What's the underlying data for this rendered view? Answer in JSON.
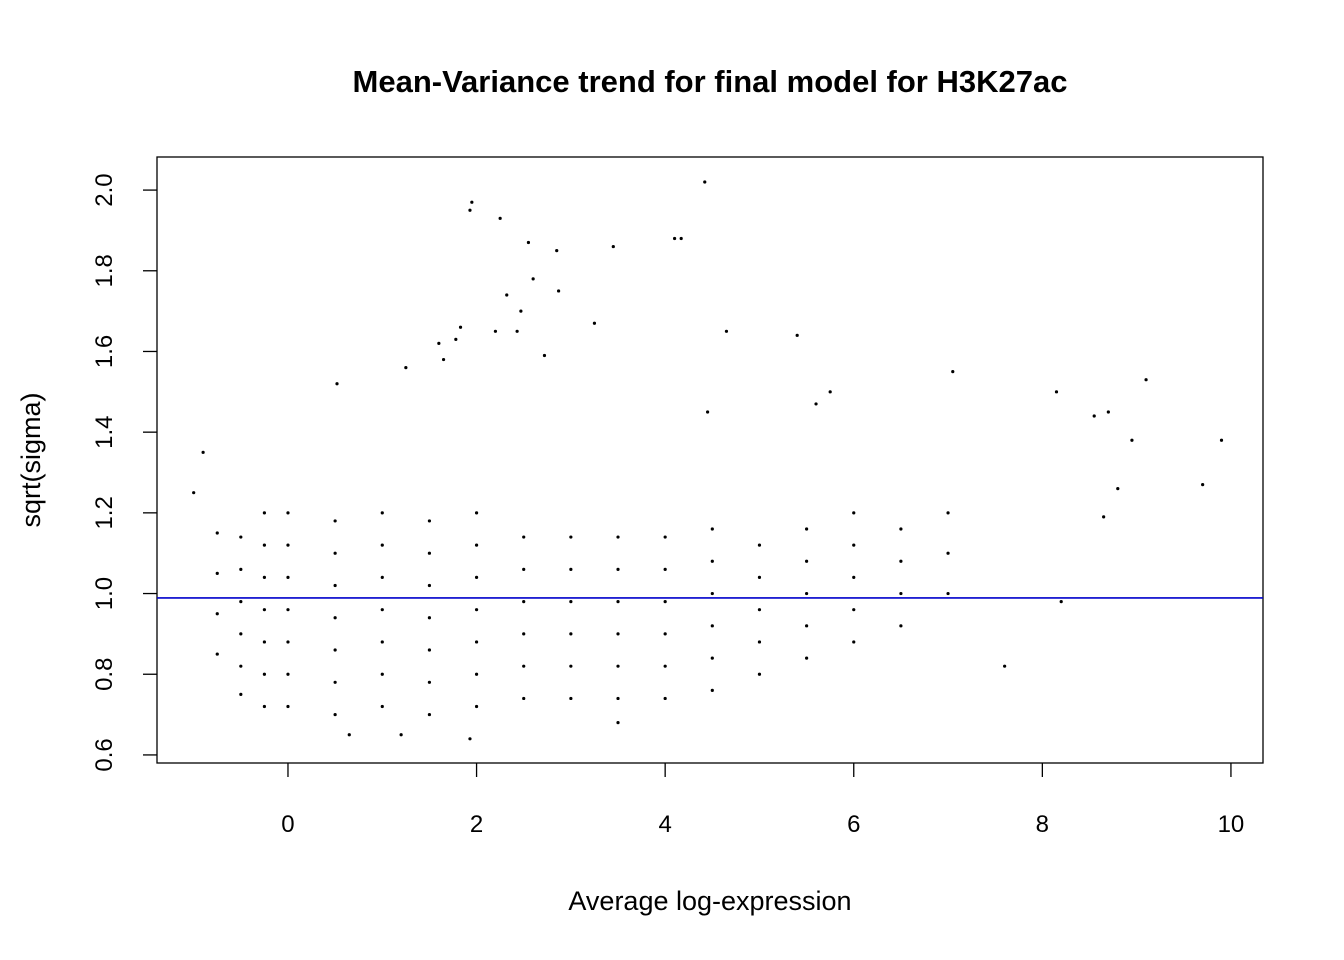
{
  "chart_data": {
    "type": "scatter",
    "title": "Mean-Variance trend for final model for H3K27ac",
    "xlabel": "Average log-expression",
    "ylabel": "sqrt(sigma)",
    "color": "#000000",
    "x": [
      -0.75,
      -0.75,
      -0.75,
      -0.75,
      -0.5,
      -0.5,
      -0.5,
      -0.5,
      -0.5,
      -0.5,
      -0.25,
      -0.25,
      -0.25,
      -0.25,
      -0.25,
      -0.25,
      -0.25,
      0,
      0,
      0,
      0,
      0,
      0,
      0,
      0.5,
      0.5,
      0.5,
      0.5,
      0.5,
      0.5,
      0.5,
      1,
      1,
      1,
      1,
      1,
      1,
      1,
      1.5,
      1.5,
      1.5,
      1.5,
      1.5,
      1.5,
      1.5,
      2,
      2,
      2,
      2,
      2,
      2,
      2,
      2.5,
      2.5,
      2.5,
      2.5,
      2.5,
      2.5,
      3,
      3,
      3,
      3,
      3,
      3,
      3.5,
      3.5,
      3.5,
      3.5,
      3.5,
      3.5,
      4,
      4,
      4,
      4,
      4,
      4,
      4.5,
      4.5,
      4.5,
      4.5,
      4.5,
      4.5,
      5,
      5,
      5,
      5,
      5,
      5.5,
      5.5,
      5.5,
      5.5,
      5.5,
      6,
      6,
      6,
      6,
      6,
      6.5,
      6.5,
      6.5,
      6.5,
      7,
      7,
      7,
      1.95,
      1.93,
      2.25,
      2.55,
      2.85,
      3.45,
      4.1,
      4.17,
      4.42,
      2.6,
      2.87,
      2.32,
      2.47,
      2.43,
      3.25,
      1.83,
      1.78,
      2.2,
      1.6,
      4.65,
      5.4,
      2.72,
      1.65,
      0.52,
      1.25,
      7.05,
      9.1,
      8.15,
      5.75,
      5.6,
      8.7,
      8.55,
      4.45,
      9.9,
      8.95,
      9.7,
      8.8,
      8.65,
      1.93,
      0.65,
      7.6,
      8.2,
      -0.9,
      -1,
      3.5,
      1.2
    ],
    "y": [
      0.85,
      0.95,
      1.05,
      1.15,
      0.75,
      0.82,
      0.9,
      0.98,
      1.06,
      1.14,
      0.72,
      0.8,
      0.88,
      0.96,
      1.04,
      1.12,
      1.2,
      0.72,
      0.8,
      0.88,
      0.96,
      1.04,
      1.12,
      1.2,
      0.7,
      0.78,
      0.86,
      0.94,
      1.02,
      1.1,
      1.18,
      0.72,
      0.8,
      0.88,
      0.96,
      1.04,
      1.12,
      1.2,
      0.7,
      0.78,
      0.86,
      0.94,
      1.02,
      1.1,
      1.18,
      0.72,
      0.8,
      0.88,
      0.96,
      1.04,
      1.12,
      1.2,
      0.74,
      0.82,
      0.9,
      0.98,
      1.06,
      1.14,
      0.74,
      0.82,
      0.9,
      0.98,
      1.06,
      1.14,
      0.74,
      0.82,
      0.9,
      0.98,
      1.06,
      1.14,
      0.74,
      0.82,
      0.9,
      0.98,
      1.06,
      1.14,
      0.76,
      0.84,
      0.92,
      1.0,
      1.08,
      1.16,
      0.8,
      0.88,
      0.96,
      1.04,
      1.12,
      0.84,
      0.92,
      1.0,
      1.08,
      1.16,
      0.88,
      0.96,
      1.04,
      1.12,
      1.2,
      0.92,
      1.0,
      1.08,
      1.16,
      1.0,
      1.1,
      1.2,
      1.97,
      1.95,
      1.93,
      1.87,
      1.85,
      1.86,
      1.88,
      1.88,
      2.02,
      1.78,
      1.75,
      1.74,
      1.7,
      1.65,
      1.67,
      1.66,
      1.63,
      1.65,
      1.62,
      1.65,
      1.64,
      1.59,
      1.58,
      1.52,
      1.56,
      1.55,
      1.53,
      1.5,
      1.5,
      1.47,
      1.45,
      1.44,
      1.45,
      1.38,
      1.38,
      1.27,
      1.26,
      1.19,
      0.64,
      0.65,
      0.82,
      0.98,
      1.35,
      1.25,
      0.68,
      0.65
    ],
    "hline": 0.989,
    "hline_color": "#0000cc",
    "xlim": [
      -1.389,
      10.34
    ],
    "xticks": [
      0,
      2,
      4,
      6,
      8,
      10
    ],
    "ylim": [
      0.58,
      2.082
    ],
    "yticks": [
      0.6,
      0.8,
      {
        "value": 1,
        "label": "1.0"
      },
      1.2,
      1.4,
      1.6,
      1.8,
      {
        "value": 2,
        "label": "2.0"
      }
    ],
    "grid": false
  }
}
